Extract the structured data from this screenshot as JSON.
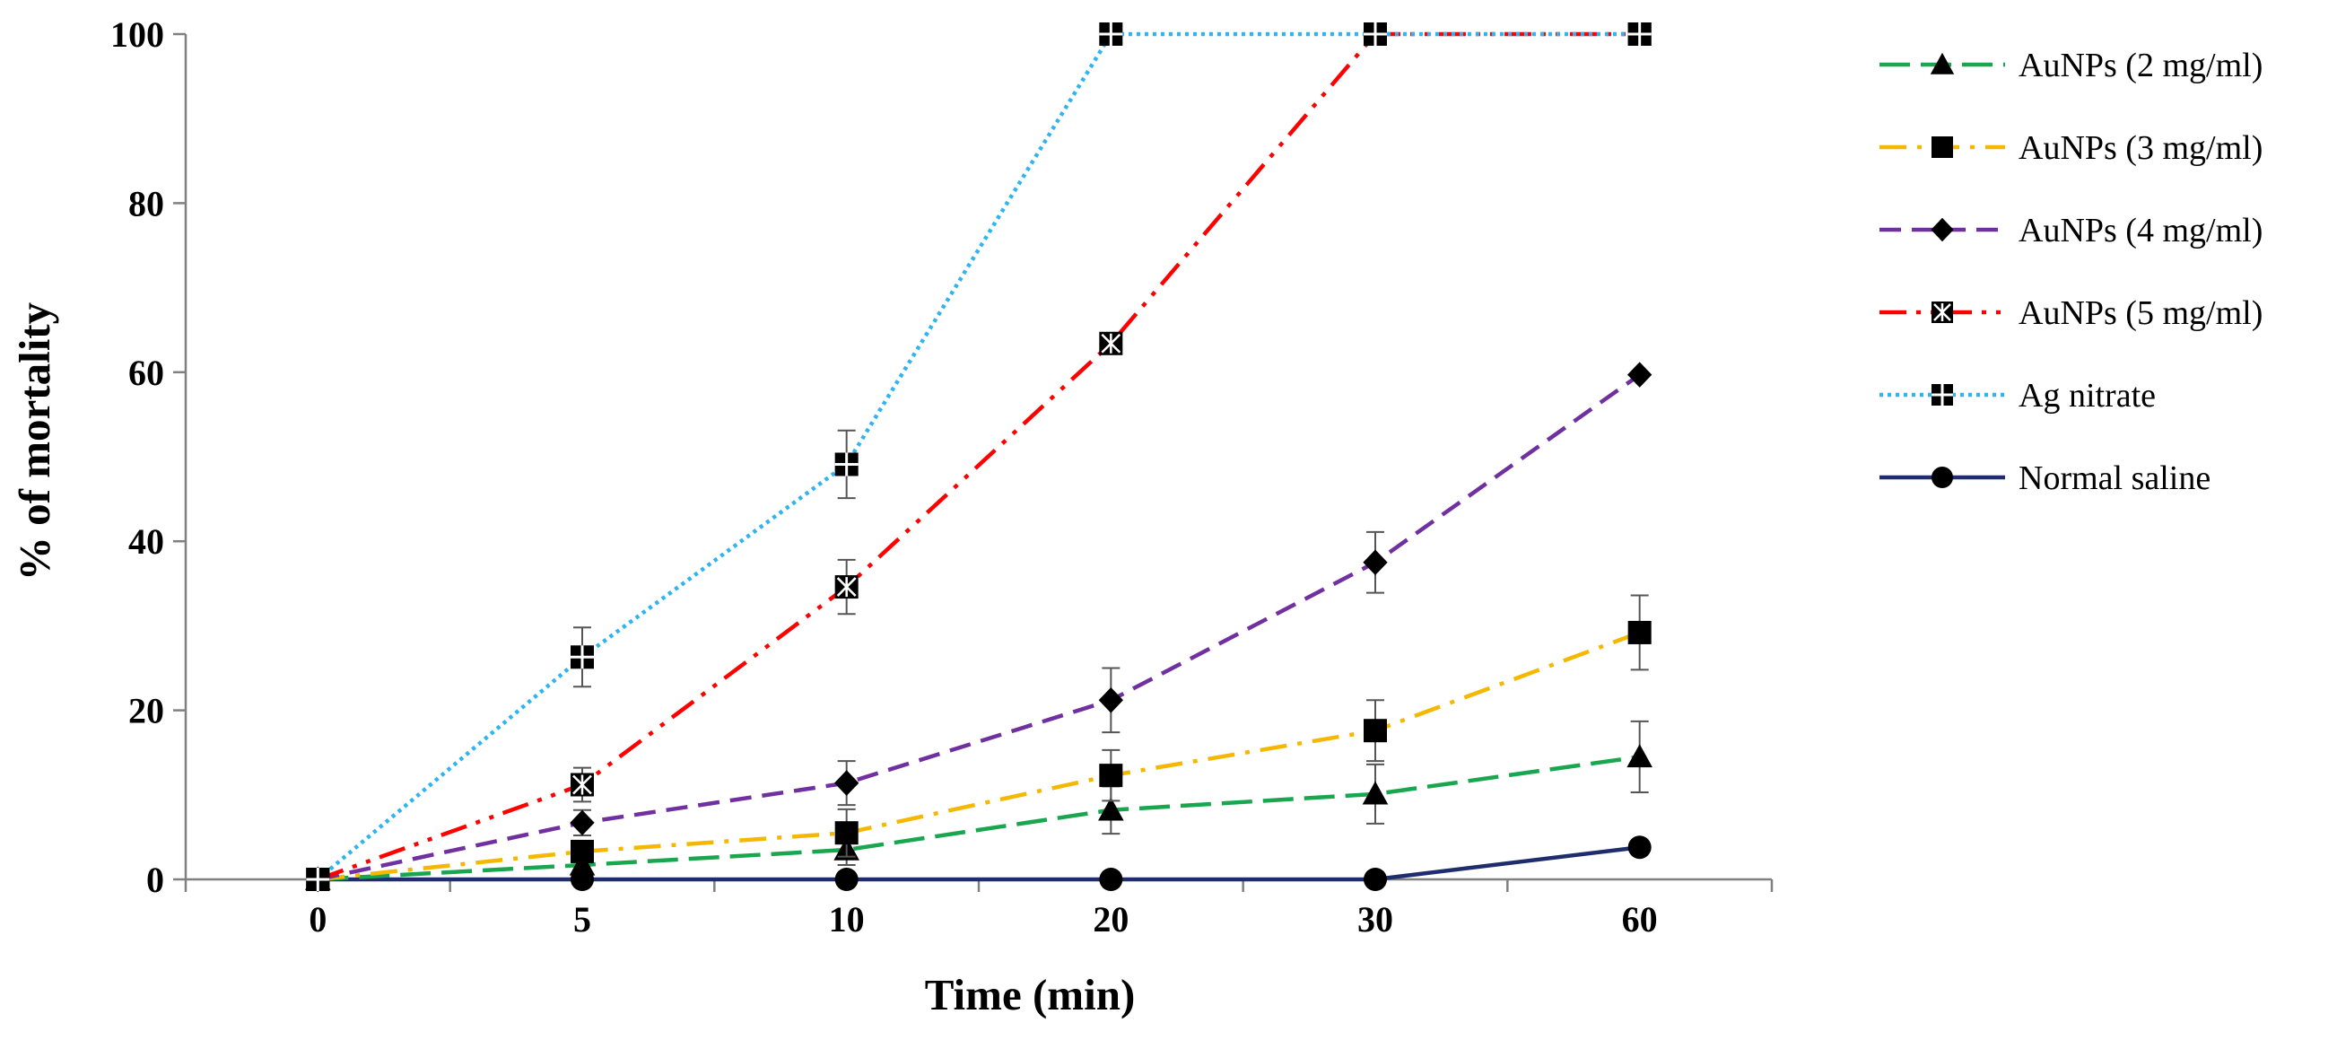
{
  "chart_data": {
    "type": "line",
    "title": "",
    "xlabel": "Time (min)",
    "ylabel": "% of mortality",
    "categories": [
      "0",
      "5",
      "10",
      "20",
      "30",
      "60"
    ],
    "ylim": [
      0,
      100
    ],
    "yticks": [
      0,
      20,
      40,
      60,
      80,
      100
    ],
    "grid": false,
    "legend_position": "right",
    "series": [
      {
        "name": "AuNPs (2 mg/ml)",
        "color": "#19a64e",
        "dash": "long-dash",
        "marker": "triangle",
        "values": [
          0,
          1.7,
          3.5,
          8.2,
          10.1,
          14.5
        ],
        "errors": [
          0,
          0.8,
          1.8,
          2.8,
          3.5,
          4.2
        ]
      },
      {
        "name": "AuNPs (3 mg/ml)",
        "color": "#f5b800",
        "dash": "dash-dot",
        "marker": "square",
        "values": [
          0,
          3.3,
          5.5,
          12.3,
          17.6,
          29.2
        ],
        "errors": [
          0,
          1.2,
          2.8,
          3.0,
          3.6,
          4.4
        ]
      },
      {
        "name": "AuNPs (4 mg/ml)",
        "color": "#7030a0",
        "dash": "dash",
        "marker": "diamond",
        "values": [
          0,
          6.7,
          11.4,
          21.2,
          37.5,
          59.7
        ],
        "errors": [
          0,
          1.5,
          2.6,
          3.8,
          3.6,
          0
        ]
      },
      {
        "name": "AuNPs (5 mg/ml)",
        "color": "#ff0000",
        "dash": "dash-dot-dot",
        "marker": "hatched-square",
        "values": [
          0,
          11.2,
          34.6,
          63.4,
          100,
          100
        ],
        "errors": [
          0,
          2.0,
          3.2,
          0,
          0,
          0
        ]
      },
      {
        "name": "Ag nitrate",
        "color": "#2eb4f0",
        "dash": "dot",
        "marker": "cross-square",
        "values": [
          0,
          26.3,
          49.1,
          100,
          100,
          100
        ],
        "errors": [
          0,
          3.5,
          4.0,
          0,
          0,
          0
        ]
      },
      {
        "name": "Normal saline",
        "color": "#1f2d6e",
        "dash": "solid",
        "marker": "circle",
        "values": [
          0,
          0,
          0,
          0,
          0,
          3.8
        ],
        "errors": [
          0,
          0,
          0,
          0,
          0,
          0
        ]
      }
    ]
  }
}
